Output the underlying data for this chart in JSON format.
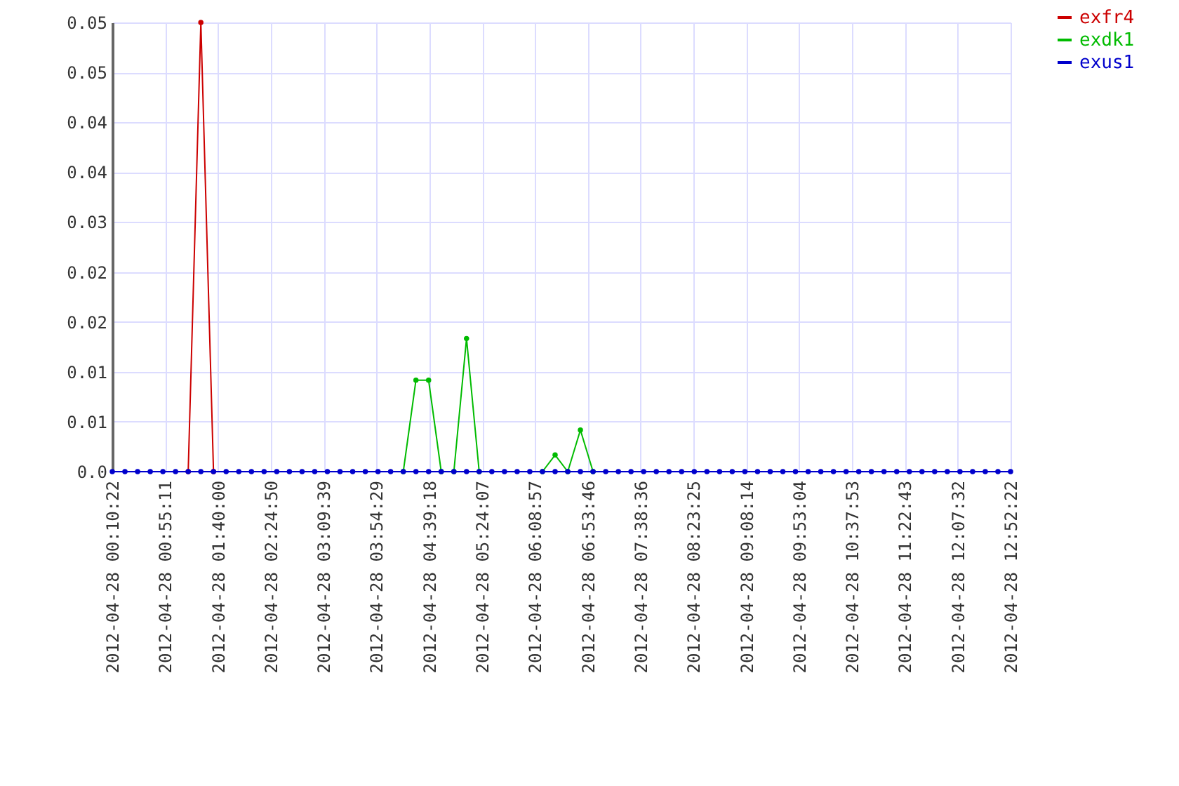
{
  "chart_data": {
    "type": "line",
    "x": [
      "2012-04-28T00:10:22",
      "2012-04-28T00:21:06",
      "2012-04-28T00:31:50",
      "2012-04-28T00:42:34",
      "2012-04-28T00:53:18",
      "2012-04-28T01:04:02",
      "2012-04-28T01:14:46",
      "2012-04-28T01:25:30",
      "2012-04-28T01:36:14",
      "2012-04-28T01:46:57",
      "2012-04-28T01:57:41",
      "2012-04-28T02:08:25",
      "2012-04-28T02:19:09",
      "2012-04-28T02:29:53",
      "2012-04-28T02:40:37",
      "2012-04-28T02:51:21",
      "2012-04-28T03:02:05",
      "2012-04-28T03:12:49",
      "2012-04-28T03:23:33",
      "2012-04-28T03:34:17",
      "2012-04-28T03:45:01",
      "2012-04-28T03:55:45",
      "2012-04-28T04:06:29",
      "2012-04-28T04:17:13",
      "2012-04-28T04:27:57",
      "2012-04-28T04:38:41",
      "2012-04-28T04:49:24",
      "2012-04-28T05:00:08",
      "2012-04-28T05:10:52",
      "2012-04-28T05:21:36",
      "2012-04-28T05:32:20",
      "2012-04-28T05:43:04",
      "2012-04-28T05:53:48",
      "2012-04-28T06:04:32",
      "2012-04-28T06:15:16",
      "2012-04-28T06:26:00",
      "2012-04-28T06:36:44",
      "2012-04-28T06:47:28",
      "2012-04-28T06:58:12",
      "2012-04-28T07:08:56",
      "2012-04-28T07:19:40",
      "2012-04-28T07:30:24",
      "2012-04-28T07:41:07",
      "2012-04-28T07:51:51",
      "2012-04-28T08:02:35",
      "2012-04-28T08:13:19",
      "2012-04-28T08:24:03",
      "2012-04-28T08:34:47",
      "2012-04-28T08:45:31",
      "2012-04-28T08:56:15",
      "2012-04-28T09:06:59",
      "2012-04-28T09:17:43",
      "2012-04-28T09:28:27",
      "2012-04-28T09:39:11",
      "2012-04-28T09:49:55",
      "2012-04-28T10:00:39",
      "2012-04-28T10:11:23",
      "2012-04-28T10:22:07",
      "2012-04-28T10:32:51",
      "2012-04-28T10:43:34",
      "2012-04-28T10:54:18",
      "2012-04-28T11:05:02",
      "2012-04-28T11:15:46",
      "2012-04-28T11:26:30",
      "2012-04-28T11:37:14",
      "2012-04-28T11:47:58",
      "2012-04-28T11:58:42",
      "2012-04-28T12:09:26",
      "2012-04-28T12:20:10",
      "2012-04-28T12:30:54",
      "2012-04-28T12:41:38",
      "2012-04-28T12:52:22"
    ],
    "series": [
      {
        "name": "exfr4",
        "color": "#cc0000",
        "values": [
          null,
          null,
          null,
          null,
          null,
          null,
          0,
          0.054,
          0,
          null,
          null,
          null,
          null,
          null,
          null,
          null,
          null,
          null,
          null,
          null,
          null,
          null,
          null,
          null,
          null,
          null,
          null,
          null,
          null,
          null,
          null,
          null,
          null,
          null,
          null,
          null,
          null,
          null,
          null,
          null,
          null,
          null,
          null,
          null,
          null,
          null,
          null,
          null,
          null,
          null,
          null,
          null,
          null,
          null,
          null,
          null,
          null,
          null,
          null,
          null,
          null,
          null,
          null,
          null,
          null,
          null,
          null,
          null,
          null,
          null,
          null,
          null
        ]
      },
      {
        "name": "exdk1",
        "color": "#00bb00",
        "values": [
          null,
          null,
          null,
          null,
          null,
          null,
          null,
          null,
          null,
          null,
          null,
          null,
          null,
          null,
          null,
          null,
          null,
          null,
          null,
          null,
          null,
          null,
          null,
          0,
          0.011,
          0.011,
          0,
          0,
          0.016,
          0,
          null,
          null,
          null,
          null,
          0,
          0.002,
          0,
          0.005,
          0,
          null,
          null,
          null,
          null,
          null,
          null,
          null,
          null,
          null,
          null,
          null,
          null,
          null,
          null,
          null,
          null,
          null,
          null,
          null,
          null,
          null,
          null,
          null,
          null,
          null,
          null,
          null,
          null,
          null,
          null,
          null,
          null,
          null
        ]
      },
      {
        "name": "exus1",
        "color": "#0000cc",
        "values": [
          0,
          0,
          0,
          0,
          0,
          0,
          0,
          0,
          0,
          0,
          0,
          0,
          0,
          0,
          0,
          0,
          0,
          0,
          0,
          0,
          0,
          0,
          0,
          0,
          0,
          0,
          0,
          0,
          0,
          0,
          0,
          0,
          0,
          0,
          0,
          0,
          0,
          0,
          0,
          0,
          0,
          0,
          0,
          0,
          0,
          0,
          0,
          0,
          0,
          0,
          0,
          0,
          0,
          0,
          0,
          0,
          0,
          0,
          0,
          0,
          0,
          0,
          0,
          0,
          0,
          0,
          0,
          0,
          0,
          0,
          0,
          0
        ]
      }
    ],
    "xlim": [
      "2012-04-28T00:10:22",
      "2012-04-28T12:52:22"
    ],
    "xticks": [
      {
        "value": "2012-04-28T00:10:22",
        "label": "2012-04-28 00:10:22"
      },
      {
        "value": "2012-04-28T00:55:11",
        "label": "2012-04-28 00:55:11"
      },
      {
        "value": "2012-04-28T01:40:00",
        "label": "2012-04-28 01:40:00"
      },
      {
        "value": "2012-04-28T02:24:50",
        "label": "2012-04-28 02:24:50"
      },
      {
        "value": "2012-04-28T03:09:39",
        "label": "2012-04-28 03:09:39"
      },
      {
        "value": "2012-04-28T03:54:29",
        "label": "2012-04-28 03:54:29"
      },
      {
        "value": "2012-04-28T04:39:18",
        "label": "2012-04-28 04:39:18"
      },
      {
        "value": "2012-04-28T05:24:07",
        "label": "2012-04-28 05:24:07"
      },
      {
        "value": "2012-04-28T06:08:57",
        "label": "2012-04-28 06:08:57"
      },
      {
        "value": "2012-04-28T06:53:46",
        "label": "2012-04-28 06:53:46"
      },
      {
        "value": "2012-04-28T07:38:36",
        "label": "2012-04-28 07:38:36"
      },
      {
        "value": "2012-04-28T08:23:25",
        "label": "2012-04-28 08:23:25"
      },
      {
        "value": "2012-04-28T09:08:14",
        "label": "2012-04-28 09:08:14"
      },
      {
        "value": "2012-04-28T09:53:04",
        "label": "2012-04-28 09:53:04"
      },
      {
        "value": "2012-04-28T10:37:53",
        "label": "2012-04-28 10:37:53"
      },
      {
        "value": "2012-04-28T11:22:43",
        "label": "2012-04-28 11:22:43"
      },
      {
        "value": "2012-04-28T12:07:32",
        "label": "2012-04-28 12:07:32"
      },
      {
        "value": "2012-04-28T12:52:22",
        "label": "2012-04-28 12:52:22"
      }
    ],
    "ylim": [
      0,
      0.054
    ],
    "yticks": [
      {
        "value": 0,
        "label": "0.0"
      },
      {
        "value": 0.006,
        "label": "0.01"
      },
      {
        "value": 0.012,
        "label": "0.01"
      },
      {
        "value": 0.018,
        "label": "0.02"
      },
      {
        "value": 0.024,
        "label": "0.02"
      },
      {
        "value": 0.03,
        "label": "0.03"
      },
      {
        "value": 0.036,
        "label": "0.04"
      },
      {
        "value": 0.042,
        "label": "0.04"
      },
      {
        "value": 0.048,
        "label": "0.05"
      },
      {
        "value": 0.054,
        "label": "0.05"
      }
    ],
    "grid": true,
    "legend": "top right",
    "marker": "circle",
    "line_style": "solid"
  }
}
